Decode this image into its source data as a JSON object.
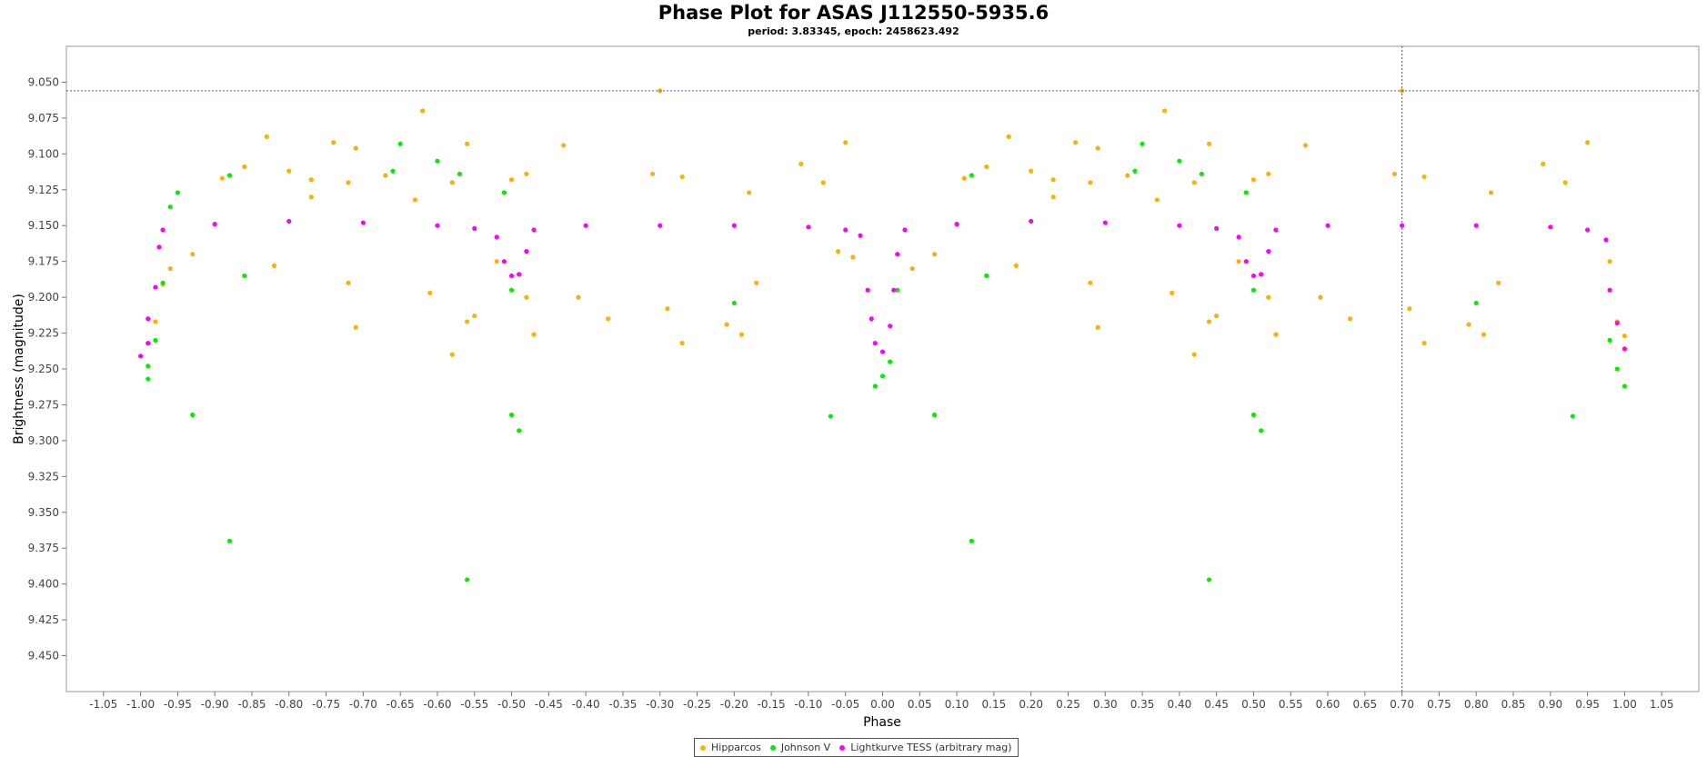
{
  "chart_data": {
    "type": "scatter",
    "title": "Phase Plot for ASAS J112550-5935.6",
    "subtitle": "period: 3.83345, epoch: 2458623.492",
    "xlabel": "Phase",
    "ylabel": "Brightness (magnitude)",
    "xlim": [
      -1.1,
      1.1
    ],
    "ylim": [
      9.025,
      9.475
    ],
    "y_inverted": true,
    "grid": false,
    "legend_position": "bottom",
    "x_ticks": [
      "-1.05",
      "-1.00",
      "-0.95",
      "-0.90",
      "-0.85",
      "-0.80",
      "-0.75",
      "-0.70",
      "-0.65",
      "-0.60",
      "-0.55",
      "-0.50",
      "-0.45",
      "-0.40",
      "-0.35",
      "-0.30",
      "-0.25",
      "-0.20",
      "-0.15",
      "-0.10",
      "-0.05",
      "0.00",
      "0.05",
      "0.10",
      "0.15",
      "0.20",
      "0.25",
      "0.30",
      "0.35",
      "0.40",
      "0.45",
      "0.50",
      "0.55",
      "0.60",
      "0.65",
      "0.70",
      "0.75",
      "0.80",
      "0.85",
      "0.90",
      "0.95",
      "1.00",
      "1.05"
    ],
    "y_ticks": [
      "9.050",
      "9.075",
      "9.100",
      "9.125",
      "9.150",
      "9.175",
      "9.200",
      "9.225",
      "9.250",
      "9.275",
      "9.300",
      "9.325",
      "9.350",
      "9.375",
      "9.400",
      "9.425",
      "9.450"
    ],
    "crosshair": {
      "x": 0.7,
      "y": 9.056
    },
    "series": [
      {
        "name": "Hipparcos",
        "color": "#ffb000",
        "points": [
          [
            -0.62,
            9.07
          ],
          [
            -0.3,
            9.056
          ],
          [
            -0.83,
            9.088
          ],
          [
            -0.74,
            9.092
          ],
          [
            -0.71,
            9.096
          ],
          [
            -0.56,
            9.093
          ],
          [
            -0.43,
            9.094
          ],
          [
            -0.05,
            9.092
          ],
          [
            -0.89,
            9.117
          ],
          [
            -0.86,
            9.109
          ],
          [
            -0.8,
            9.112
          ],
          [
            -0.77,
            9.118
          ],
          [
            -0.72,
            9.12
          ],
          [
            -0.67,
            9.115
          ],
          [
            -0.58,
            9.12
          ],
          [
            -0.5,
            9.118
          ],
          [
            -0.48,
            9.114
          ],
          [
            -0.31,
            9.114
          ],
          [
            -0.27,
            9.116
          ],
          [
            -0.18,
            9.127
          ],
          [
            -0.11,
            9.107
          ],
          [
            -0.08,
            9.12
          ],
          [
            -0.63,
            9.132
          ],
          [
            -0.77,
            9.13
          ],
          [
            -0.96,
            9.18
          ],
          [
            -0.93,
            9.17
          ],
          [
            -0.82,
            9.178
          ],
          [
            -0.72,
            9.19
          ],
          [
            -0.61,
            9.197
          ],
          [
            -0.56,
            9.217
          ],
          [
            -0.55,
            9.213
          ],
          [
            -0.52,
            9.175
          ],
          [
            -0.48,
            9.2
          ],
          [
            -0.47,
            9.226
          ],
          [
            -0.41,
            9.2
          ],
          [
            -0.37,
            9.215
          ],
          [
            -0.29,
            9.208
          ],
          [
            -0.27,
            9.232
          ],
          [
            -0.21,
            9.219
          ],
          [
            -0.19,
            9.226
          ],
          [
            -0.17,
            9.19
          ],
          [
            -0.98,
            9.217
          ],
          [
            -0.97,
            9.191
          ],
          [
            -0.71,
            9.221
          ],
          [
            -0.58,
            9.24
          ],
          [
            -0.06,
            9.168
          ],
          [
            -0.04,
            9.172
          ],
          [
            0.02,
            9.17
          ],
          [
            0.98,
            9.175
          ],
          [
            0.99,
            9.217
          ],
          [
            1.0,
            9.227
          ],
          [
            0.38,
            9.07
          ],
          [
            0.7,
            9.056
          ],
          [
            0.17,
            9.088
          ],
          [
            0.26,
            9.092
          ],
          [
            0.29,
            9.096
          ],
          [
            0.44,
            9.093
          ],
          [
            0.57,
            9.094
          ],
          [
            0.95,
            9.092
          ],
          [
            0.11,
            9.117
          ],
          [
            0.14,
            9.109
          ],
          [
            0.2,
            9.112
          ],
          [
            0.23,
            9.118
          ],
          [
            0.28,
            9.12
          ],
          [
            0.33,
            9.115
          ],
          [
            0.42,
            9.12
          ],
          [
            0.5,
            9.118
          ],
          [
            0.52,
            9.114
          ],
          [
            0.69,
            9.114
          ],
          [
            0.73,
            9.116
          ],
          [
            0.82,
            9.127
          ],
          [
            0.89,
            9.107
          ],
          [
            0.92,
            9.12
          ],
          [
            0.37,
            9.132
          ],
          [
            0.23,
            9.13
          ],
          [
            0.04,
            9.18
          ],
          [
            0.07,
            9.17
          ],
          [
            0.18,
            9.178
          ],
          [
            0.28,
            9.19
          ],
          [
            0.39,
            9.197
          ],
          [
            0.44,
            9.217
          ],
          [
            0.45,
            9.213
          ],
          [
            0.48,
            9.175
          ],
          [
            0.52,
            9.2
          ],
          [
            0.53,
            9.226
          ],
          [
            0.59,
            9.2
          ],
          [
            0.63,
            9.215
          ],
          [
            0.71,
            9.208
          ],
          [
            0.73,
            9.232
          ],
          [
            0.79,
            9.219
          ],
          [
            0.81,
            9.226
          ],
          [
            0.83,
            9.19
          ],
          [
            0.29,
            9.221
          ],
          [
            0.42,
            9.24
          ]
        ]
      },
      {
        "name": "Johnson V",
        "color": "#00ee00",
        "points": [
          [
            -0.65,
            9.093
          ],
          [
            -0.6,
            9.105
          ],
          [
            -0.88,
            9.115
          ],
          [
            -0.88,
            9.37
          ],
          [
            -0.56,
            9.397
          ],
          [
            -0.93,
            9.282
          ],
          [
            -0.5,
            9.282
          ],
          [
            -0.49,
            9.293
          ],
          [
            -0.07,
            9.283
          ],
          [
            -0.2,
            9.204
          ],
          [
            -0.99,
            9.257
          ],
          [
            -0.99,
            9.248
          ],
          [
            -0.98,
            9.23
          ],
          [
            -0.97,
            9.19
          ],
          [
            -0.96,
            9.137
          ],
          [
            -0.95,
            9.127
          ],
          [
            -0.86,
            9.185
          ],
          [
            -0.66,
            9.112
          ],
          [
            -0.57,
            9.114
          ],
          [
            -0.51,
            9.127
          ],
          [
            -0.5,
            9.195
          ],
          [
            -0.01,
            9.262
          ],
          [
            0.0,
            9.255
          ],
          [
            0.01,
            9.245
          ],
          [
            0.02,
            9.195
          ],
          [
            0.35,
            9.093
          ],
          [
            0.4,
            9.105
          ],
          [
            0.12,
            9.115
          ],
          [
            0.12,
            9.37
          ],
          [
            0.44,
            9.397
          ],
          [
            0.07,
            9.282
          ],
          [
            0.5,
            9.282
          ],
          [
            0.51,
            9.293
          ],
          [
            0.93,
            9.283
          ],
          [
            0.8,
            9.204
          ],
          [
            1.0,
            9.262
          ],
          [
            0.99,
            9.25
          ],
          [
            0.98,
            9.23
          ],
          [
            0.14,
            9.185
          ],
          [
            0.34,
            9.112
          ],
          [
            0.43,
            9.114
          ],
          [
            0.49,
            9.127
          ],
          [
            0.5,
            9.195
          ]
        ]
      },
      {
        "name": "Lightkurve TESS (arbitrary mag)",
        "color": "#ff00ff",
        "points": [
          [
            -1.0,
            9.241
          ],
          [
            -0.99,
            9.232
          ],
          [
            -0.99,
            9.215
          ],
          [
            -0.98,
            9.193
          ],
          [
            -0.975,
            9.165
          ],
          [
            -0.97,
            9.153
          ],
          [
            -0.9,
            9.149
          ],
          [
            -0.8,
            9.147
          ],
          [
            -0.7,
            9.148
          ],
          [
            -0.6,
            9.15
          ],
          [
            -0.55,
            9.152
          ],
          [
            -0.52,
            9.158
          ],
          [
            -0.51,
            9.175
          ],
          [
            -0.5,
            9.185
          ],
          [
            -0.49,
            9.184
          ],
          [
            -0.48,
            9.168
          ],
          [
            -0.47,
            9.153
          ],
          [
            -0.4,
            9.15
          ],
          [
            -0.3,
            9.15
          ],
          [
            -0.2,
            9.15
          ],
          [
            -0.1,
            9.151
          ],
          [
            -0.05,
            9.153
          ],
          [
            -0.03,
            9.157
          ],
          [
            -0.02,
            9.195
          ],
          [
            -0.015,
            9.215
          ],
          [
            -0.01,
            9.232
          ],
          [
            0.0,
            9.238
          ],
          [
            0.01,
            9.22
          ],
          [
            0.015,
            9.195
          ],
          [
            0.02,
            9.17
          ],
          [
            0.03,
            9.153
          ],
          [
            0.1,
            9.149
          ],
          [
            0.2,
            9.147
          ],
          [
            0.3,
            9.148
          ],
          [
            0.4,
            9.15
          ],
          [
            0.45,
            9.152
          ],
          [
            0.48,
            9.158
          ],
          [
            0.49,
            9.175
          ],
          [
            0.5,
            9.185
          ],
          [
            0.51,
            9.184
          ],
          [
            0.52,
            9.168
          ],
          [
            0.53,
            9.153
          ],
          [
            0.6,
            9.15
          ],
          [
            0.7,
            9.15
          ],
          [
            0.8,
            9.15
          ],
          [
            0.9,
            9.151
          ],
          [
            0.95,
            9.153
          ],
          [
            0.975,
            9.16
          ],
          [
            0.98,
            9.195
          ],
          [
            0.99,
            9.218
          ],
          [
            1.0,
            9.236
          ]
        ]
      }
    ]
  }
}
